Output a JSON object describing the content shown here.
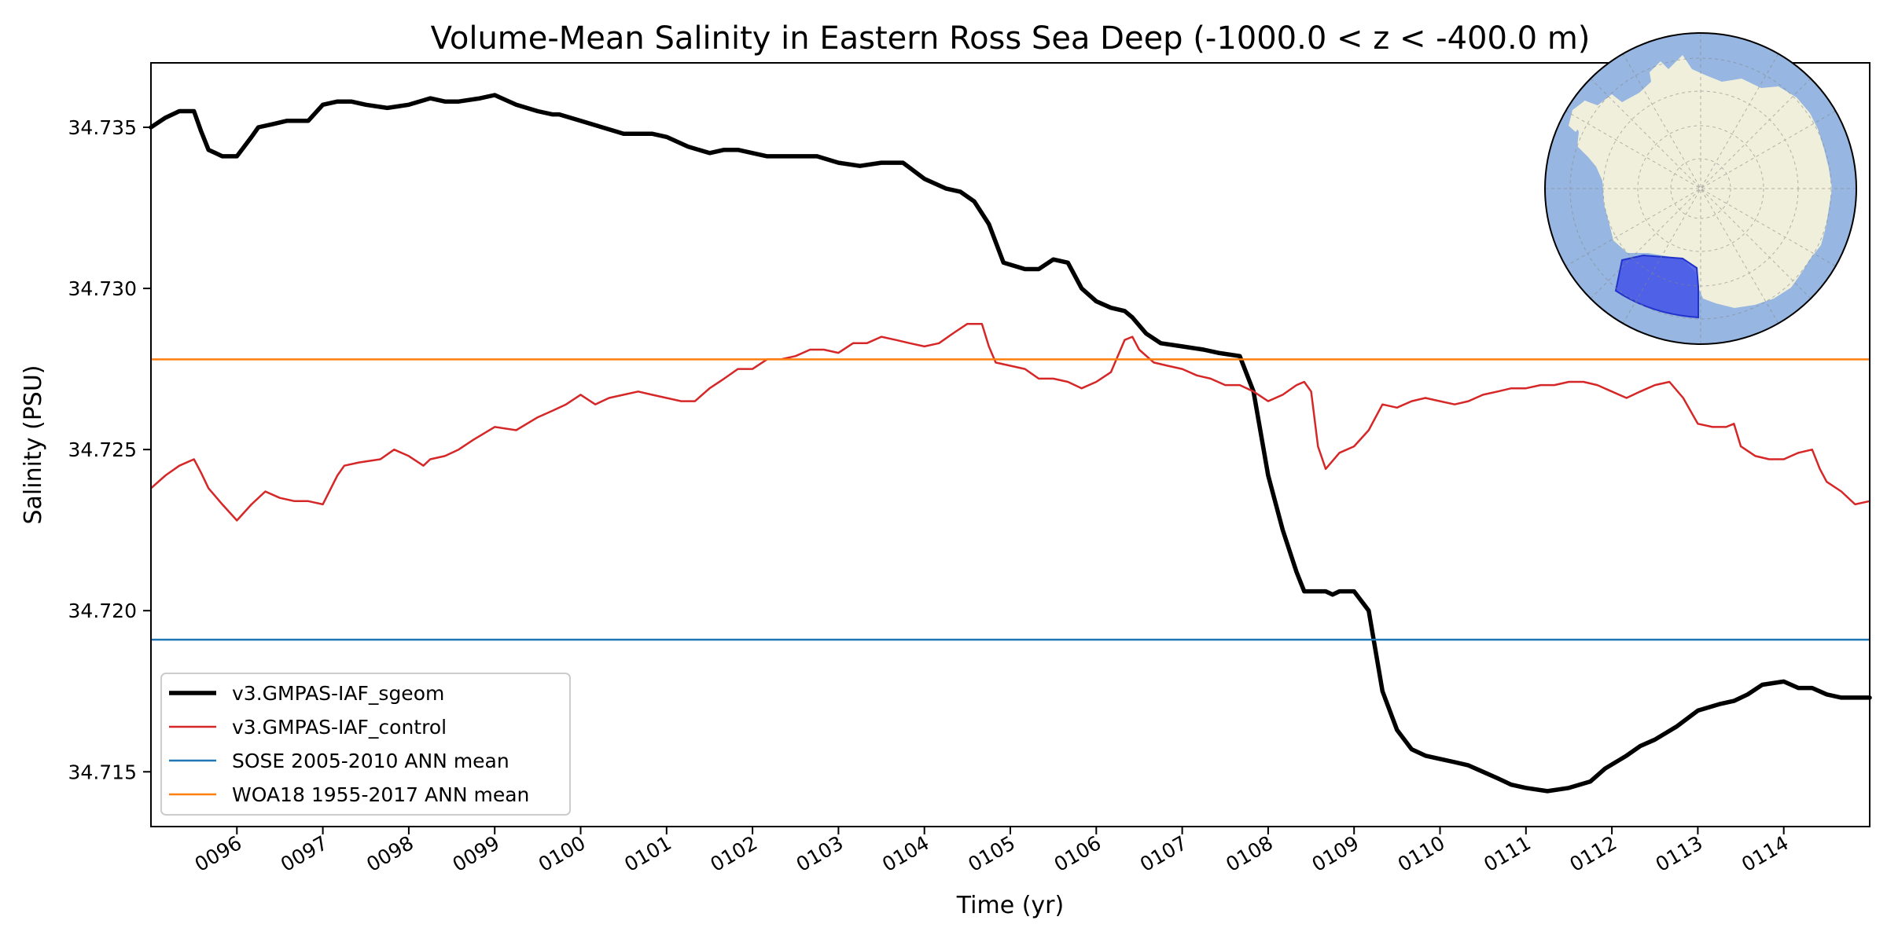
{
  "chart_data": {
    "type": "line",
    "title": "Volume-Mean Salinity in Eastern Ross Sea Deep (-1000.0 < z < -400.0 m)",
    "xlabel": "Time (yr)",
    "ylabel": "Salinity (PSU)",
    "xlim": [
      95.0,
      115.0
    ],
    "ylim": [
      34.7133,
      34.737
    ],
    "x_ticks": [
      96,
      97,
      98,
      99,
      100,
      101,
      102,
      103,
      104,
      105,
      106,
      107,
      108,
      109,
      110,
      111,
      112,
      113,
      114
    ],
    "x_tick_labels": [
      "0096",
      "0097",
      "0098",
      "0099",
      "0100",
      "0101",
      "0102",
      "0103",
      "0104",
      "0105",
      "0106",
      "0107",
      "0108",
      "0109",
      "0110",
      "0111",
      "0112",
      "0113",
      "0114"
    ],
    "y_ticks": [
      34.715,
      34.72,
      34.725,
      34.73,
      34.735
    ],
    "y_tick_labels": [
      "34.715",
      "34.720",
      "34.725",
      "34.730",
      "34.735"
    ],
    "grid": false,
    "legend_position": "lower-left",
    "series": [
      {
        "name": "v3.GMPAS-IAF_sgeom",
        "color": "#000000",
        "style": "thick-line",
        "x": [
          95.0,
          95.17,
          95.33,
          95.5,
          95.58,
          95.67,
          95.75,
          95.83,
          96.0,
          96.17,
          96.25,
          96.42,
          96.58,
          96.83,
          97.0,
          97.17,
          97.33,
          97.5,
          97.75,
          98.0,
          98.25,
          98.42,
          98.58,
          98.83,
          99.0,
          99.25,
          99.5,
          99.67,
          99.75,
          100.0,
          100.25,
          100.5,
          100.67,
          100.83,
          101.0,
          101.25,
          101.5,
          101.67,
          101.83,
          102.0,
          102.17,
          102.5,
          102.75,
          103.0,
          103.25,
          103.5,
          103.75,
          104.0,
          104.25,
          104.42,
          104.58,
          104.75,
          104.92,
          105.17,
          105.33,
          105.5,
          105.67,
          105.83,
          106.0,
          106.17,
          106.33,
          106.42,
          106.58,
          106.75,
          107.0,
          107.25,
          107.42,
          107.67,
          107.83,
          108.0,
          108.17,
          108.33,
          108.42,
          108.5,
          108.58,
          108.67,
          108.75,
          108.83,
          109.0,
          109.17,
          109.33,
          109.5,
          109.67,
          109.83,
          110.0,
          110.17,
          110.33,
          110.5,
          110.67,
          110.83,
          111.0,
          111.25,
          111.5,
          111.75,
          111.92,
          112.17,
          112.33,
          112.5,
          112.75,
          113.0,
          113.25,
          113.42,
          113.58,
          113.75,
          114.0,
          114.17,
          114.33,
          114.5,
          114.67,
          114.83,
          115.0
        ],
        "values": [
          34.735,
          34.7353,
          34.7355,
          34.7355,
          34.7349,
          34.7343,
          34.7342,
          34.7341,
          34.7341,
          34.7347,
          34.735,
          34.7351,
          34.7352,
          34.7352,
          34.7357,
          34.7358,
          34.7358,
          34.7357,
          34.7356,
          34.7357,
          34.7359,
          34.7358,
          34.7358,
          34.7359,
          34.736,
          34.7357,
          34.7355,
          34.7354,
          34.7354,
          34.7352,
          34.735,
          34.7348,
          34.7348,
          34.7348,
          34.7347,
          34.7344,
          34.7342,
          34.7343,
          34.7343,
          34.7342,
          34.7341,
          34.7341,
          34.7341,
          34.7339,
          34.7338,
          34.7339,
          34.7339,
          34.7334,
          34.7331,
          34.733,
          34.7327,
          34.732,
          34.7308,
          34.7306,
          34.7306,
          34.7309,
          34.7308,
          34.73,
          34.7296,
          34.7294,
          34.7293,
          34.7291,
          34.7286,
          34.7283,
          34.7282,
          34.7281,
          34.728,
          34.7279,
          34.7268,
          34.7242,
          34.7225,
          34.7212,
          34.7206,
          34.7206,
          34.7206,
          34.7206,
          34.7205,
          34.7206,
          34.7206,
          34.72,
          34.7175,
          34.7163,
          34.7157,
          34.7155,
          34.7154,
          34.7153,
          34.7152,
          34.715,
          34.7148,
          34.7146,
          34.7145,
          34.7144,
          34.7145,
          34.7147,
          34.7151,
          34.7155,
          34.7158,
          34.716,
          34.7164,
          34.7169,
          34.7171,
          34.7172,
          34.7174,
          34.7177,
          34.7178,
          34.7176,
          34.7176,
          34.7174,
          34.7173,
          34.7173,
          34.7173
        ]
      },
      {
        "name": "v3.GMPAS-IAF_control",
        "color": "#d62728",
        "style": "line",
        "x": [
          95.0,
          95.17,
          95.33,
          95.5,
          95.58,
          95.67,
          95.83,
          96.0,
          96.17,
          96.33,
          96.5,
          96.67,
          96.83,
          97.0,
          97.17,
          97.25,
          97.42,
          97.67,
          97.83,
          98.0,
          98.17,
          98.25,
          98.42,
          98.58,
          98.75,
          99.0,
          99.25,
          99.5,
          99.67,
          99.83,
          100.0,
          100.17,
          100.33,
          100.5,
          100.67,
          100.83,
          101.0,
          101.17,
          101.33,
          101.5,
          101.67,
          101.83,
          102.0,
          102.17,
          102.33,
          102.5,
          102.67,
          102.83,
          103.0,
          103.17,
          103.33,
          103.5,
          103.67,
          103.83,
          104.0,
          104.17,
          104.33,
          104.5,
          104.67,
          104.75,
          104.83,
          105.0,
          105.17,
          105.33,
          105.5,
          105.67,
          105.83,
          106.0,
          106.17,
          106.33,
          106.42,
          106.5,
          106.67,
          106.83,
          107.0,
          107.17,
          107.33,
          107.5,
          107.67,
          107.83,
          108.0,
          108.17,
          108.33,
          108.42,
          108.5,
          108.58,
          108.67,
          108.83,
          109.0,
          109.17,
          109.33,
          109.5,
          109.67,
          109.83,
          110.0,
          110.17,
          110.33,
          110.5,
          110.67,
          110.83,
          111.0,
          111.17,
          111.33,
          111.5,
          111.67,
          111.83,
          112.0,
          112.17,
          112.33,
          112.5,
          112.67,
          112.83,
          113.0,
          113.17,
          113.33,
          113.42,
          113.5,
          113.67,
          113.83,
          114.0,
          114.17,
          114.33,
          114.42,
          114.5,
          114.67,
          114.83,
          115.0
        ],
        "values": [
          34.7238,
          34.7242,
          34.7245,
          34.7247,
          34.7243,
          34.7238,
          34.7233,
          34.7228,
          34.7233,
          34.7237,
          34.7235,
          34.7234,
          34.7234,
          34.7233,
          34.7242,
          34.7245,
          34.7246,
          34.7247,
          34.725,
          34.7248,
          34.7245,
          34.7247,
          34.7248,
          34.725,
          34.7253,
          34.7257,
          34.7256,
          34.726,
          34.7262,
          34.7264,
          34.7267,
          34.7264,
          34.7266,
          34.7267,
          34.7268,
          34.7267,
          34.7266,
          34.7265,
          34.7265,
          34.7269,
          34.7272,
          34.7275,
          34.7275,
          34.7278,
          34.7278,
          34.7279,
          34.7281,
          34.7281,
          34.728,
          34.7283,
          34.7283,
          34.7285,
          34.7284,
          34.7283,
          34.7282,
          34.7283,
          34.7286,
          34.7289,
          34.7289,
          34.7282,
          34.7277,
          34.7276,
          34.7275,
          34.7272,
          34.7272,
          34.7271,
          34.7269,
          34.7271,
          34.7274,
          34.7284,
          34.7285,
          34.7281,
          34.7277,
          34.7276,
          34.7275,
          34.7273,
          34.7272,
          34.727,
          34.727,
          34.7268,
          34.7265,
          34.7267,
          34.727,
          34.7271,
          34.7268,
          34.7251,
          34.7244,
          34.7249,
          34.7251,
          34.7256,
          34.7264,
          34.7263,
          34.7265,
          34.7266,
          34.7265,
          34.7264,
          34.7265,
          34.7267,
          34.7268,
          34.7269,
          34.7269,
          34.727,
          34.727,
          34.7271,
          34.7271,
          34.727,
          34.7268,
          34.7266,
          34.7268,
          34.727,
          34.7271,
          34.7266,
          34.7258,
          34.7257,
          34.7257,
          34.7258,
          34.7251,
          34.7248,
          34.7247,
          34.7247,
          34.7249,
          34.725,
          34.7244,
          34.724,
          34.7237,
          34.7233,
          34.7234
        ]
      },
      {
        "name": "SOSE 2005-2010 ANN mean",
        "color": "#1f77b4",
        "style": "hline",
        "value": 34.7191
      },
      {
        "name": "WOA18 1955-2017 ANN mean",
        "color": "#ff7f0e",
        "style": "hline",
        "value": 34.7278
      }
    ],
    "inset_map": {
      "description_name": "antarctic-inset-map",
      "ocean_color": "#97b6e1",
      "land_color": "#efefdb",
      "region_color": "#3a49e8"
    }
  }
}
